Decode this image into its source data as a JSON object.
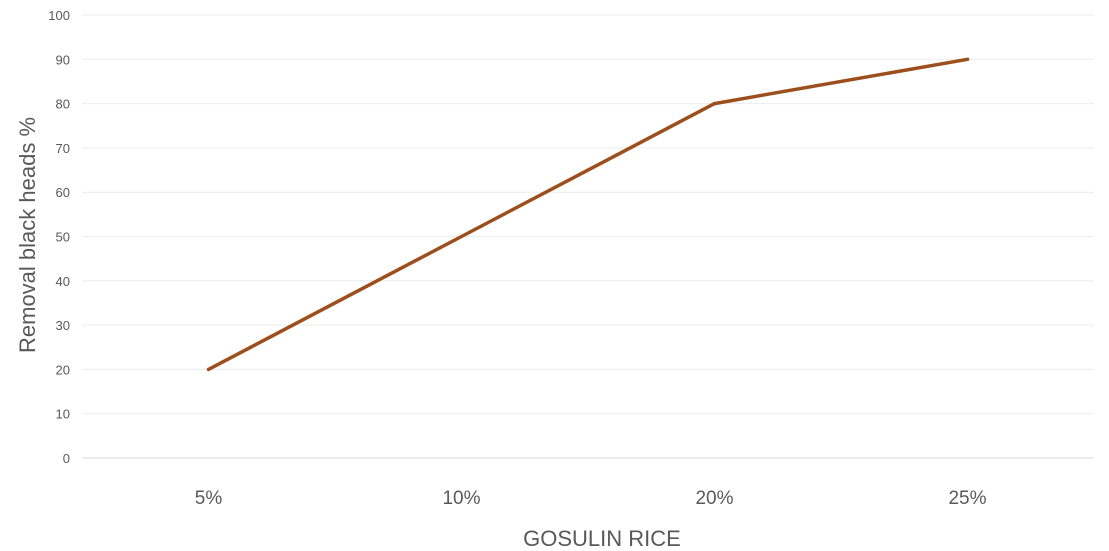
{
  "chart_data": {
    "type": "line",
    "categories": [
      "5%",
      "10%",
      "20%",
      "25%"
    ],
    "series": [
      {
        "values": [
          20,
          50,
          80,
          90
        ],
        "color": "#9c4f1c"
      }
    ],
    "xlabel": "GOSULIN RICE",
    "ylabel": "Removal black heads %",
    "ylim": [
      0,
      100
    ],
    "yticks": [
      0,
      10,
      20,
      30,
      40,
      50,
      60,
      70,
      80,
      90,
      100
    ],
    "grid": true,
    "legend": "none"
  }
}
